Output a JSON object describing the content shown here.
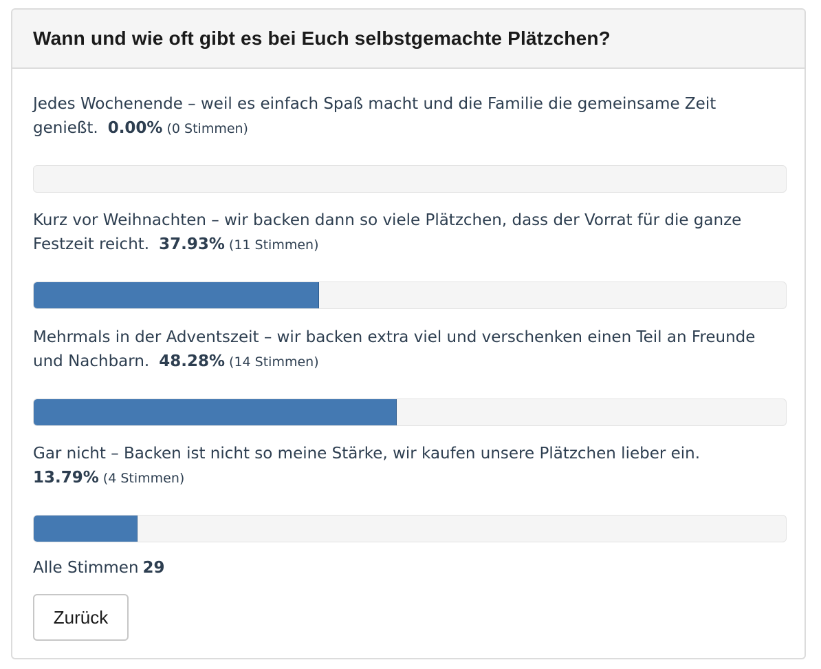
{
  "poll": {
    "title": "Wann und wie oft gibt es bei Euch selbstgemachte Plätzchen?",
    "options": [
      {
        "text": "Jedes Wochenende – weil es einfach Spaß macht und die Familie die gemeinsame Zeit genießt.",
        "percent_label": "0.00%",
        "votes_label": "(0 Stimmen)",
        "fraction": 0.0
      },
      {
        "text": "Kurz vor Weihnachten – wir backen dann so viele Plätzchen, dass der Vorrat für die ganze Festzeit reicht.",
        "percent_label": "37.93%",
        "votes_label": "(11 Stimmen)",
        "fraction": 0.3793
      },
      {
        "text": "Mehrmals in der Adventszeit – wir backen extra viel und verschenken einen Teil an Freunde und Nachbarn.",
        "percent_label": "48.28%",
        "votes_label": "(14 Stimmen)",
        "fraction": 0.4828
      },
      {
        "text": "Gar nicht – Backen ist nicht so meine Stärke, wir kaufen unsere Plätzchen lieber ein.",
        "percent_label": "13.79%",
        "votes_label": "(4 Stimmen)",
        "fraction": 0.1379
      }
    ],
    "total_label": "Alle Stimmen",
    "total_value": "29",
    "back_label": "Zurück"
  },
  "colors": {
    "bar": "#4479b2",
    "track": "#f5f5f5",
    "header_bg": "#f5f5f5"
  }
}
